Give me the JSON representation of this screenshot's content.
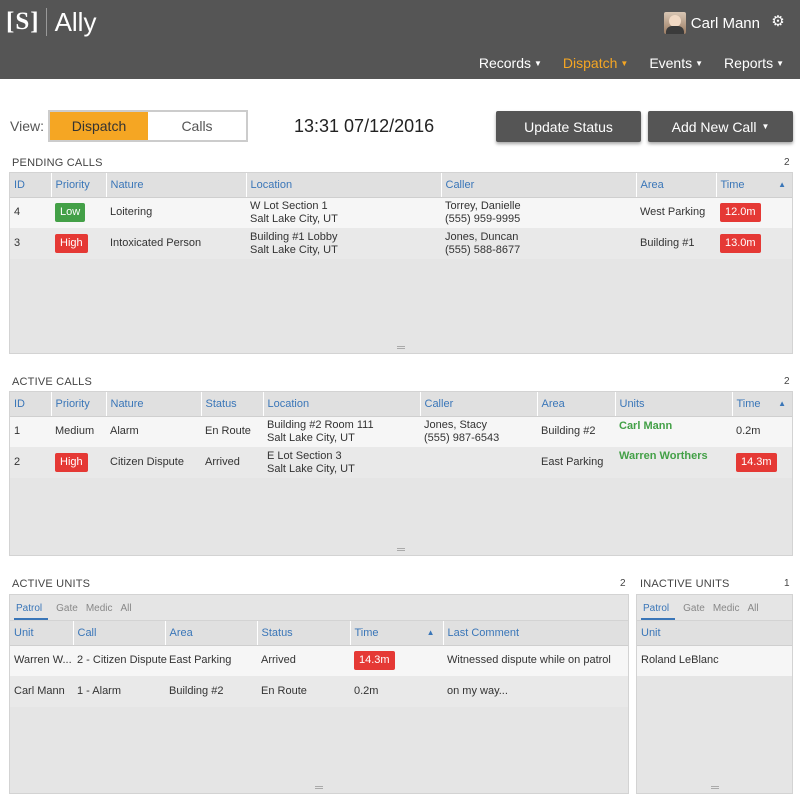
{
  "app": {
    "logo_mark": "[S]",
    "name": "Ally",
    "user": "Carl Mann",
    "nav": [
      {
        "label": "Records",
        "active": false
      },
      {
        "label": "Dispatch",
        "active": true
      },
      {
        "label": "Events",
        "active": false
      },
      {
        "label": "Reports",
        "active": false
      }
    ]
  },
  "toolbar": {
    "view_label": "View:",
    "view_options": [
      "Dispatch",
      "Calls"
    ],
    "view_selected": "Dispatch",
    "clock": "13:31 07/12/2016",
    "update_status": "Update Status",
    "add_new_call": "Add New Call"
  },
  "pending_calls": {
    "title": "PENDING CALLS",
    "count": "2",
    "columns": [
      "ID",
      "Priority",
      "Nature",
      "Location",
      "Caller",
      "Area",
      "Time"
    ],
    "rows": [
      {
        "id": "4",
        "priority": "Low",
        "nature": "Loitering",
        "location1": "W Lot Section 1",
        "location2": "Salt Lake City, UT",
        "caller1": "Torrey, Danielle",
        "caller2": "(555) 959-9995",
        "area": "West Parking",
        "time": "12.0m"
      },
      {
        "id": "3",
        "priority": "High",
        "nature": "Intoxicated Person",
        "location1": "Building #1 Lobby",
        "location2": "Salt Lake City, UT",
        "caller1": "Jones, Duncan",
        "caller2": "(555) 588-8677",
        "area": "Building #1",
        "time": "13.0m"
      }
    ]
  },
  "active_calls": {
    "title": "ACTIVE CALLS",
    "count": "2",
    "columns": [
      "ID",
      "Priority",
      "Nature",
      "Status",
      "Location",
      "Caller",
      "Area",
      "Units",
      "Time"
    ],
    "rows": [
      {
        "id": "1",
        "priority": "Medium",
        "nature": "Alarm",
        "status": "En Route",
        "location1": "Building #2 Room 111",
        "location2": "Salt Lake City, UT",
        "caller1": "Jones, Stacy",
        "caller2": "(555) 987-6543",
        "area": "Building #2",
        "units": "Carl Mann",
        "time": "0.2m"
      },
      {
        "id": "2",
        "priority": "High",
        "nature": "Citizen Dispute",
        "status": "Arrived",
        "location1": "E Lot Section 3",
        "location2": "Salt Lake City, UT",
        "caller1": "",
        "caller2": "",
        "area": "East Parking",
        "units": "Warren Worthers",
        "time": "14.3m"
      }
    ]
  },
  "active_units": {
    "title": "ACTIVE UNITS",
    "count": "2",
    "tabs": [
      "Patrol",
      "Gate",
      "Medic",
      "All"
    ],
    "columns": [
      "Unit",
      "Call",
      "Area",
      "Status",
      "Time",
      "Last Comment"
    ],
    "rows": [
      {
        "unit": "Warren W...",
        "call": "2 - Citizen Dispute",
        "area": "East Parking",
        "status": "Arrived",
        "time": "14.3m",
        "comment": "Witnessed dispute while on patrol"
      },
      {
        "unit": "Carl Mann",
        "call": "1 - Alarm",
        "area": "Building #2",
        "status": "En Route",
        "time": "0.2m",
        "comment": "on my way..."
      }
    ]
  },
  "inactive_units": {
    "title": "INACTIVE UNITS",
    "count": "1",
    "tabs": [
      "Patrol",
      "Gate",
      "Medic",
      "All"
    ],
    "columns": [
      "Unit"
    ],
    "rows": [
      {
        "unit": "Roland LeBlanc"
      }
    ]
  },
  "colors": {
    "accent": "#f5a623",
    "header_bg": "#555555",
    "high": "#e53935",
    "low": "#43a047",
    "link": "#3a76b8"
  }
}
